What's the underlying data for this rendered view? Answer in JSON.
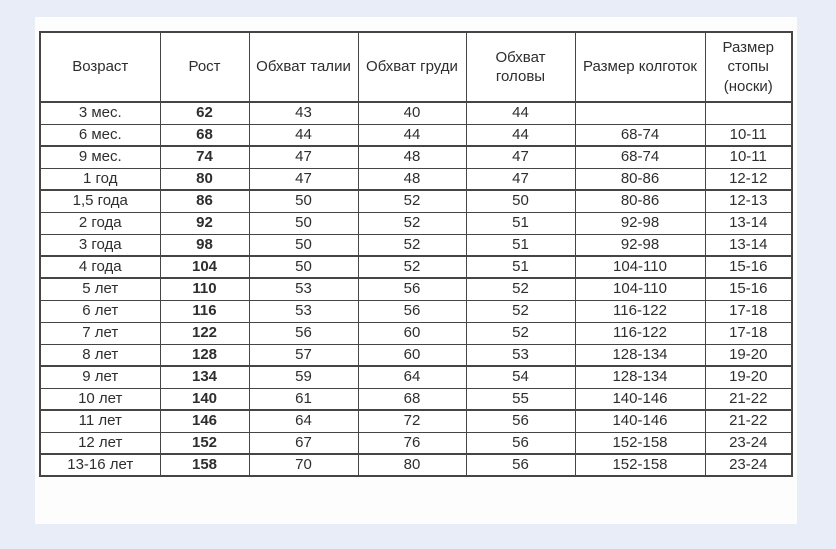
{
  "colors": {
    "page_bg": "#e8edf7",
    "panel_bg": "#fdfdfe",
    "border_color": "#454545",
    "text_color": "#2e2e2e"
  },
  "table": {
    "title": "children-clothing-size-chart",
    "columns": [
      "Возраст",
      "Рост",
      "Обхват талии",
      "Обхват груди",
      "Обхват головы",
      "Размер колготок",
      "Размер стопы (носки)"
    ],
    "rows": [
      [
        "3 мес.",
        "62",
        "43",
        "40",
        "44",
        "",
        ""
      ],
      [
        "6 мес.",
        "68",
        "44",
        "44",
        "44",
        "68-74",
        "10-11"
      ],
      [
        "9 мес.",
        "74",
        "47",
        "48",
        "47",
        "68-74",
        "10-11"
      ],
      [
        "1 год",
        "80",
        "47",
        "48",
        "47",
        "80-86",
        "12-12"
      ],
      [
        "1,5 года",
        "86",
        "50",
        "52",
        "50",
        "80-86",
        "12-13"
      ],
      [
        "2 года",
        "92",
        "50",
        "52",
        "51",
        "92-98",
        "13-14"
      ],
      [
        "3 года",
        "98",
        "50",
        "52",
        "51",
        "92-98",
        "13-14"
      ],
      [
        "4 года",
        "104",
        "50",
        "52",
        "51",
        "104-110",
        "15-16"
      ],
      [
        "5 лет",
        "110",
        "53",
        "56",
        "52",
        "104-110",
        "15-16"
      ],
      [
        "6 лет",
        "116",
        "53",
        "56",
        "52",
        "116-122",
        "17-18"
      ],
      [
        "7 лет",
        "122",
        "56",
        "60",
        "52",
        "116-122",
        "17-18"
      ],
      [
        "8 лет",
        "128",
        "57",
        "60",
        "53",
        "128-134",
        "19-20"
      ],
      [
        "9 лет",
        "134",
        "59",
        "64",
        "54",
        "128-134",
        "19-20"
      ],
      [
        "10 лет",
        "140",
        "61",
        "68",
        "55",
        "140-146",
        "21-22"
      ],
      [
        "11 лет",
        "146",
        "64",
        "72",
        "56",
        "140-146",
        "21-22"
      ],
      [
        "12 лет",
        "152",
        "67",
        "76",
        "56",
        "152-158",
        "23-24"
      ],
      [
        "13-16 лет",
        "158",
        "70",
        "80",
        "56",
        "152-158",
        "23-24"
      ]
    ]
  }
}
